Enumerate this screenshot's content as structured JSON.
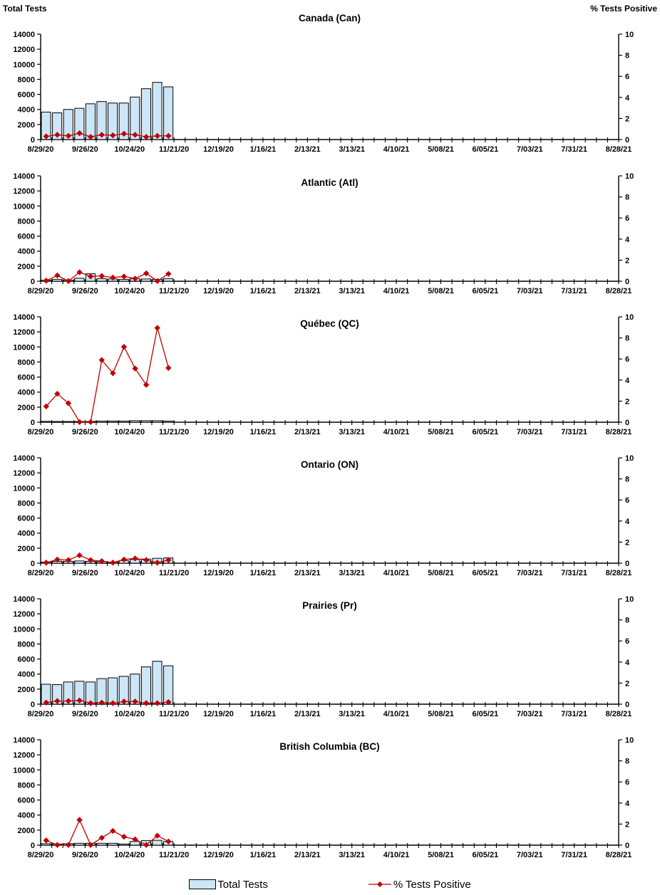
{
  "legend": {
    "total_tests_label": "Total Tests",
    "pct_positive_label": "% Tests Positive"
  },
  "colors": {
    "bar_fill": "#CDE6F7",
    "bar_border": "#000000",
    "line": "#C00000"
  },
  "chart_data": [
    {
      "type": "bar",
      "title": "Canada (Can)",
      "left_axis": {
        "label": "Total Tests",
        "min": 0,
        "max": 14000,
        "ticks": [
          0,
          2000,
          4000,
          6000,
          8000,
          10000,
          12000,
          14000
        ]
      },
      "right_axis": {
        "label": "% Tests Positive",
        "min": 0,
        "max": 10,
        "ticks": [
          0,
          2,
          4,
          6,
          8,
          10
        ]
      },
      "x_tick_labels": [
        "8/29/20",
        "9/26/20",
        "10/24/20",
        "11/21/20",
        "12/19/20",
        "1/16/21",
        "2/13/21",
        "3/13/21",
        "4/10/21",
        "5/08/21",
        "6/05/21",
        "7/03/21",
        "7/31/21",
        "8/28/21"
      ],
      "categories": [
        "8/29/20",
        "9/5/20",
        "9/12/20",
        "9/19/20",
        "9/26/20",
        "10/3/20",
        "10/10/20",
        "10/17/20",
        "10/24/20",
        "10/31/20",
        "11/7/20",
        "11/14/20"
      ],
      "series": [
        {
          "name": "Total Tests",
          "axis": "left",
          "values": [
            3650,
            3550,
            4000,
            4150,
            4750,
            5050,
            4850,
            4850,
            5650,
            6750,
            7600,
            7000
          ]
        },
        {
          "name": "% Tests Positive",
          "axis": "right",
          "values": [
            0.3,
            0.45,
            0.35,
            0.6,
            0.25,
            0.45,
            0.4,
            0.55,
            0.45,
            0.25,
            0.35,
            0.35
          ]
        }
      ]
    },
    {
      "type": "bar",
      "title": "Atlantic (Atl)",
      "left_axis": {
        "min": 0,
        "max": 14000,
        "ticks": [
          0,
          2000,
          4000,
          6000,
          8000,
          10000,
          12000,
          14000
        ]
      },
      "right_axis": {
        "min": 0,
        "max": 10,
        "ticks": [
          0,
          2,
          4,
          6,
          8,
          10
        ]
      },
      "x_tick_labels": [
        "8/29/20",
        "9/26/20",
        "10/24/20",
        "11/21/20",
        "12/19/20",
        "1/16/21",
        "2/13/21",
        "3/13/21",
        "4/10/21",
        "5/08/21",
        "6/05/21",
        "7/03/21",
        "7/31/21",
        "8/28/21"
      ],
      "categories": [
        "8/29/20",
        "9/5/20",
        "9/12/20",
        "9/19/20",
        "9/26/20",
        "10/3/20",
        "10/10/20",
        "10/17/20",
        "10/24/20",
        "10/31/20",
        "11/7/20",
        "11/14/20"
      ],
      "series": [
        {
          "name": "Total Tests",
          "axis": "left",
          "values": [
            150,
            250,
            150,
            400,
            1000,
            350,
            300,
            250,
            350,
            300,
            250,
            350
          ]
        },
        {
          "name": "% Tests Positive",
          "axis": "right",
          "values": [
            0.05,
            0.55,
            0.02,
            0.85,
            0.45,
            0.5,
            0.35,
            0.45,
            0.25,
            0.75,
            0.02,
            0.7
          ]
        }
      ]
    },
    {
      "type": "bar",
      "title": "Québec (QC)",
      "left_axis": {
        "min": 0,
        "max": 14000,
        "ticks": [
          0,
          2000,
          4000,
          6000,
          8000,
          10000,
          12000,
          14000
        ]
      },
      "right_axis": {
        "min": 0,
        "max": 10,
        "ticks": [
          0,
          2,
          4,
          6,
          8,
          10
        ]
      },
      "x_tick_labels": [
        "8/29/20",
        "9/26/20",
        "10/24/20",
        "11/21/20",
        "12/19/20",
        "1/16/21",
        "2/13/21",
        "3/13/21",
        "4/10/21",
        "5/08/21",
        "6/05/21",
        "7/03/21",
        "7/31/21",
        "8/28/21"
      ],
      "categories": [
        "8/29/20",
        "9/5/20",
        "9/12/20",
        "9/19/20",
        "9/26/20",
        "10/3/20",
        "10/10/20",
        "10/17/20",
        "10/24/20",
        "10/31/20",
        "11/7/20",
        "11/14/20"
      ],
      "series": [
        {
          "name": "Total Tests",
          "axis": "left",
          "values": [
            120,
            100,
            100,
            100,
            100,
            150,
            150,
            150,
            200,
            200,
            200,
            150
          ]
        },
        {
          "name": "% Tests Positive",
          "axis": "right",
          "values": [
            1.5,
            2.7,
            1.8,
            0.02,
            0.02,
            5.9,
            4.65,
            7.15,
            5.1,
            3.55,
            8.95,
            5.15
          ]
        }
      ]
    },
    {
      "type": "bar",
      "title": "Ontario (ON)",
      "left_axis": {
        "min": 0,
        "max": 14000,
        "ticks": [
          0,
          2000,
          4000,
          6000,
          8000,
          10000,
          12000,
          14000
        ]
      },
      "right_axis": {
        "min": 0,
        "max": 10,
        "ticks": [
          0,
          2,
          4,
          6,
          8,
          10
        ]
      },
      "x_tick_labels": [
        "8/29/20",
        "9/26/20",
        "10/24/20",
        "11/21/20",
        "12/19/20",
        "1/16/21",
        "2/13/21",
        "3/13/21",
        "4/10/21",
        "5/08/21",
        "6/05/21",
        "7/03/21",
        "7/31/21",
        "8/28/21"
      ],
      "categories": [
        "8/29/20",
        "9/5/20",
        "9/12/20",
        "9/19/20",
        "9/26/20",
        "10/3/20",
        "10/10/20",
        "10/17/20",
        "10/24/20",
        "10/31/20",
        "11/7/20",
        "11/14/20"
      ],
      "series": [
        {
          "name": "Total Tests",
          "axis": "left",
          "values": [
            150,
            250,
            250,
            300,
            250,
            200,
            150,
            350,
            500,
            550,
            650,
            700
          ]
        },
        {
          "name": "% Tests Positive",
          "axis": "right",
          "values": [
            0.05,
            0.35,
            0.3,
            0.75,
            0.3,
            0.2,
            0.05,
            0.35,
            0.45,
            0.3,
            0.05,
            0.3
          ]
        }
      ]
    },
    {
      "type": "bar",
      "title": "Prairies (Pr)",
      "left_axis": {
        "min": 0,
        "max": 14000,
        "ticks": [
          0,
          2000,
          4000,
          6000,
          8000,
          10000,
          12000,
          14000
        ]
      },
      "right_axis": {
        "min": 0,
        "max": 10,
        "ticks": [
          0,
          2,
          4,
          6,
          8,
          10
        ]
      },
      "x_tick_labels": [
        "8/29/20",
        "9/26/20",
        "10/24/20",
        "11/21/20",
        "12/19/20",
        "1/16/21",
        "2/13/21",
        "3/13/21",
        "4/10/21",
        "5/08/21",
        "6/05/21",
        "7/03/21",
        "7/31/21",
        "8/28/21"
      ],
      "categories": [
        "8/29/20",
        "9/5/20",
        "9/12/20",
        "9/19/20",
        "9/26/20",
        "10/3/20",
        "10/10/20",
        "10/17/20",
        "10/24/20",
        "10/31/20",
        "11/7/20",
        "11/14/20"
      ],
      "series": [
        {
          "name": "Total Tests",
          "axis": "left",
          "values": [
            2650,
            2600,
            2950,
            3050,
            2950,
            3400,
            3500,
            3700,
            4000,
            4950,
            5700,
            5100
          ]
        },
        {
          "name": "% Tests Positive",
          "axis": "right",
          "values": [
            0.15,
            0.3,
            0.3,
            0.35,
            0.1,
            0.15,
            0.1,
            0.25,
            0.25,
            0.1,
            0.1,
            0.2
          ]
        }
      ]
    },
    {
      "type": "bar",
      "title": "British Columbia (BC)",
      "left_axis": {
        "min": 0,
        "max": 14000,
        "ticks": [
          0,
          2000,
          4000,
          6000,
          8000,
          10000,
          12000,
          14000
        ]
      },
      "right_axis": {
        "min": 0,
        "max": 10,
        "ticks": [
          0,
          2,
          4,
          6,
          8,
          10
        ]
      },
      "x_tick_labels": [
        "8/29/20",
        "9/26/20",
        "10/24/20",
        "11/21/20",
        "12/19/20",
        "1/16/21",
        "2/13/21",
        "3/13/21",
        "4/10/21",
        "5/08/21",
        "6/05/21",
        "7/03/21",
        "7/31/21",
        "8/28/21"
      ],
      "categories": [
        "8/29/20",
        "9/5/20",
        "9/12/20",
        "9/19/20",
        "9/26/20",
        "10/3/20",
        "10/10/20",
        "10/17/20",
        "10/24/20",
        "10/31/20",
        "11/7/20",
        "11/14/20"
      ],
      "series": [
        {
          "name": "Total Tests",
          "axis": "left",
          "values": [
            200,
            150,
            200,
            250,
            250,
            250,
            250,
            150,
            500,
            600,
            650,
            500
          ]
        },
        {
          "name": "% Tests Positive",
          "axis": "right",
          "values": [
            0.45,
            0.02,
            0.02,
            2.4,
            0.02,
            0.7,
            1.35,
            0.8,
            0.55,
            0.02,
            0.9,
            0.35
          ]
        }
      ]
    }
  ]
}
